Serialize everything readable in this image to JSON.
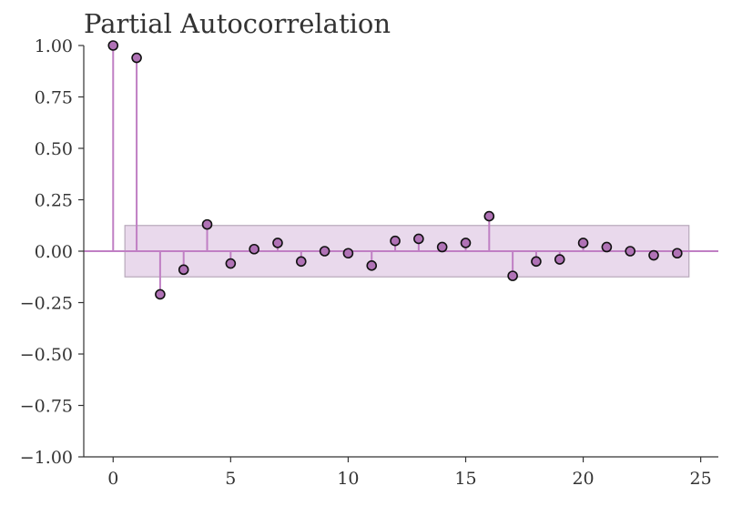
{
  "chart_data": {
    "type": "stem",
    "title": "Partial Autocorrelation",
    "xlabel": "",
    "ylabel": "",
    "xlim": [
      -1.25,
      25.75
    ],
    "ylim": [
      -1.0,
      1.0
    ],
    "x_ticks": [
      0,
      5,
      10,
      15,
      20,
      25
    ],
    "y_ticks": [
      1.0,
      0.75,
      0.5,
      0.25,
      0.0,
      -0.25,
      -0.5,
      -0.75,
      -1.0
    ],
    "x_tick_labels": [
      "0",
      "5",
      "10",
      "15",
      "20",
      "25"
    ],
    "y_tick_labels": [
      "1.00",
      "0.75",
      "0.50",
      "0.25",
      "0.00",
      "−0.25",
      "−0.50",
      "−0.75",
      "−1.00"
    ],
    "lags": [
      0,
      1,
      2,
      3,
      4,
      5,
      6,
      7,
      8,
      9,
      10,
      11,
      12,
      13,
      14,
      15,
      16,
      17,
      18,
      19,
      20,
      21,
      22,
      23,
      24
    ],
    "values": [
      1.0,
      0.94,
      -0.21,
      -0.09,
      0.13,
      -0.06,
      0.01,
      0.04,
      -0.05,
      0.0,
      -0.01,
      -0.07,
      0.05,
      0.06,
      0.02,
      0.04,
      0.17,
      -0.12,
      -0.05,
      -0.04,
      0.04,
      0.02,
      0.0,
      -0.02,
      -0.01
    ],
    "confidence_band": {
      "x_range": [
        0.5,
        24.5
      ],
      "lower": -0.125,
      "upper": 0.125
    },
    "colors": {
      "stem": "#c07fc4",
      "marker_fill": "#b072b6",
      "marker_edge": "#111111",
      "band_fill": "#e9d9ec",
      "axis": "#333333"
    },
    "grid": false,
    "legend": "none"
  }
}
